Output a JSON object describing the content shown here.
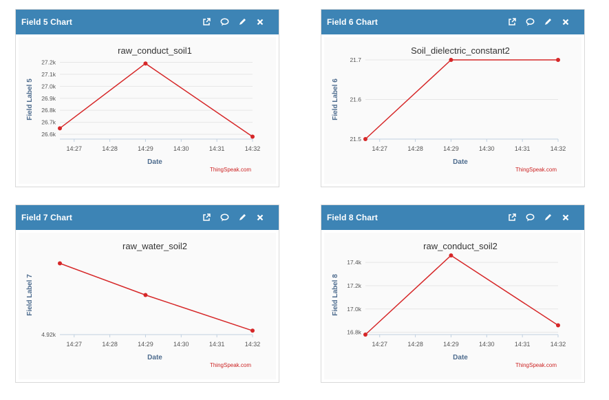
{
  "colors": {
    "header_bg": "#3d84b5",
    "line": "#d62728",
    "axis_text": "#4e6c8e",
    "credit": "#cc2222"
  },
  "icons": {
    "open": "external-link-icon",
    "comment": "comment-icon",
    "edit": "pencil-icon",
    "close": "close-icon"
  },
  "panels": [
    {
      "title": "Field 5 Chart",
      "chart_title": "raw_conduct_soil1",
      "ylabel": "Field Label 5",
      "xlabel": "Date",
      "credit": "ThingSpeak.com",
      "yticks": [
        "27.2k",
        "27.1k",
        "27.0k",
        "26.9k",
        "26.8k",
        "26.7k",
        "26.6k"
      ],
      "xticks": [
        "14:27",
        "14:28",
        "14:29",
        "14:30",
        "14:31",
        "14:32"
      ]
    },
    {
      "title": "Field 6 Chart",
      "chart_title": "Soil_dielectric_constant2",
      "ylabel": "Field Label 6",
      "xlabel": "Date",
      "credit": "ThingSpeak.com",
      "yticks": [
        "21.7",
        "21.6",
        "21.5"
      ],
      "xticks": [
        "14:27",
        "14:28",
        "14:29",
        "14:30",
        "14:31",
        "14:32"
      ]
    },
    {
      "title": "Field 7 Chart",
      "chart_title": "raw_water_soil2",
      "ylabel": "Field Label 7",
      "xlabel": "Date",
      "credit": "ThingSpeak.com",
      "yticks": [
        "4.92k"
      ],
      "xticks": [
        "14:27",
        "14:28",
        "14:29",
        "14:30",
        "14:31",
        "14:32"
      ]
    },
    {
      "title": "Field 8 Chart",
      "chart_title": "raw_conduct_soil2",
      "ylabel": "Field Label 8",
      "xlabel": "Date",
      "credit": "ThingSpeak.com",
      "yticks": [
        "17.4k",
        "17.2k",
        "17.0k",
        "16.8k"
      ],
      "xticks": [
        "14:27",
        "14:28",
        "14:29",
        "14:30",
        "14:31",
        "14:32"
      ]
    }
  ],
  "chart_data": [
    {
      "type": "line",
      "title": "raw_conduct_soil1",
      "xlabel": "Date",
      "ylabel": "Field Label 5",
      "categories": [
        "14:27",
        "14:28",
        "14:29",
        "14:30",
        "14:31",
        "14:32"
      ],
      "xlim": [
        26.6,
        32.0
      ],
      "ylim": [
        26.56,
        27.22
      ],
      "ytick_values": [
        27.2,
        27.1,
        27.0,
        26.9,
        26.8,
        26.7,
        26.6
      ],
      "series": [
        {
          "name": "raw_conduct_soil1",
          "x": [
            26.6,
            29.0,
            32.0
          ],
          "values": [
            26.65,
            27.19,
            26.58
          ]
        }
      ]
    },
    {
      "type": "line",
      "title": "Soil_dielectric_constant2",
      "xlabel": "Date",
      "ylabel": "Field Label 6",
      "categories": [
        "14:27",
        "14:28",
        "14:29",
        "14:30",
        "14:31",
        "14:32"
      ],
      "xlim": [
        26.6,
        32.0
      ],
      "ylim": [
        21.5,
        21.7
      ],
      "ytick_values": [
        21.7,
        21.6,
        21.5
      ],
      "series": [
        {
          "name": "Soil_dielectric_constant2",
          "x": [
            26.6,
            29.0,
            32.0
          ],
          "values": [
            21.5,
            21.7,
            21.7
          ]
        }
      ]
    },
    {
      "type": "line",
      "title": "raw_water_soil2",
      "xlabel": "Date",
      "ylabel": "Field Label 7",
      "categories": [
        "14:27",
        "14:28",
        "14:29",
        "14:30",
        "14:31",
        "14:32"
      ],
      "xlim": [
        26.6,
        32.0
      ],
      "ylim": [
        4.92,
        5.02
      ],
      "ytick_values": [
        4.92
      ],
      "series": [
        {
          "name": "raw_water_soil2",
          "x": [
            26.6,
            29.0,
            32.0
          ],
          "values": [
            5.01,
            4.97,
            4.925
          ]
        }
      ]
    },
    {
      "type": "line",
      "title": "raw_conduct_soil2",
      "xlabel": "Date",
      "ylabel": "Field Label 8",
      "categories": [
        "14:27",
        "14:28",
        "14:29",
        "14:30",
        "14:31",
        "14:32"
      ],
      "xlim": [
        26.6,
        32.0
      ],
      "ylim": [
        16.78,
        17.46
      ],
      "ytick_values": [
        17.4,
        17.2,
        17.0,
        16.8
      ],
      "series": [
        {
          "name": "raw_conduct_soil2",
          "x": [
            26.6,
            29.0,
            32.0
          ],
          "values": [
            16.78,
            17.46,
            16.86
          ]
        }
      ]
    }
  ]
}
